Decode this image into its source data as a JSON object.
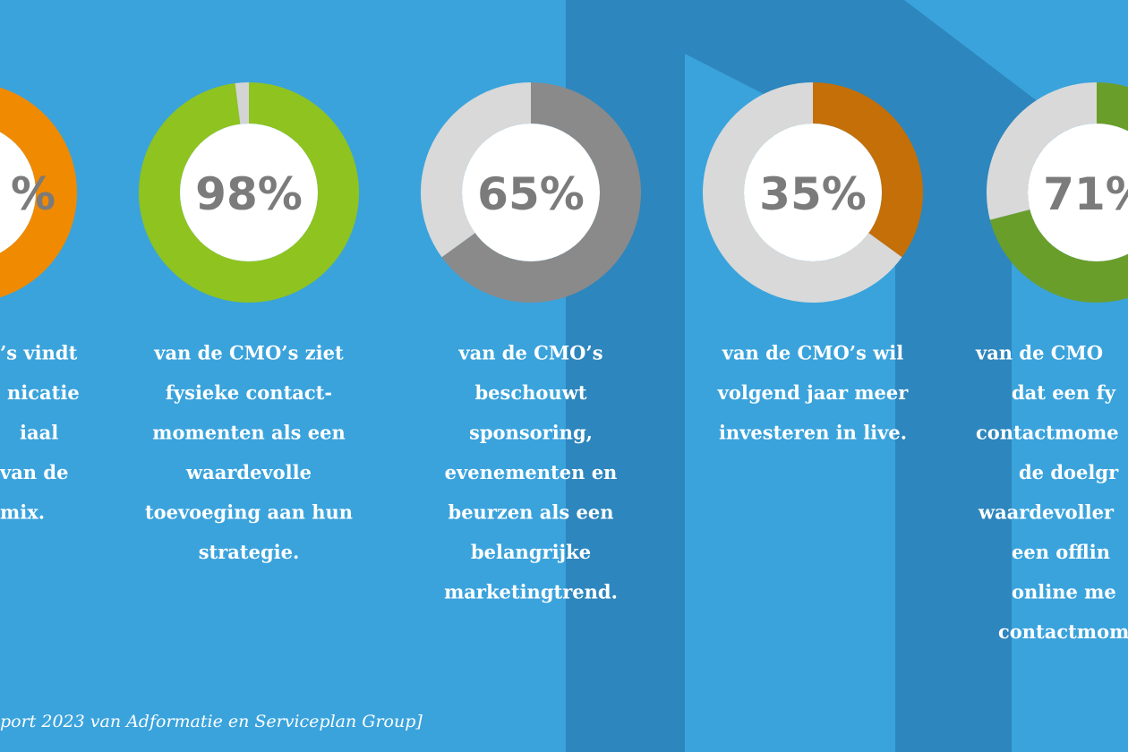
{
  "chart_data": [
    {
      "type": "pie",
      "values": [
        100
      ],
      "colors": [
        "#f08a00"
      ],
      "label": "%",
      "text": [
        "’s vindt",
        "nicatie",
        "iaal",
        "van de",
        "mix."
      ]
    },
    {
      "type": "pie",
      "values": [
        98,
        2
      ],
      "colors": [
        "#8fc31f",
        "#d4d4d4"
      ],
      "value_labels": [
        "98%",
        null
      ],
      "text": [
        "van de CMO’s ziet",
        "fysieke contact-",
        "momenten als een",
        "waardevolle",
        "toevoeging aan hun",
        "strategie."
      ]
    },
    {
      "type": "pie",
      "values": [
        65,
        35
      ],
      "colors": [
        "#8a8a8a",
        "#d9d9d9"
      ],
      "value_labels": [
        "65%",
        null
      ],
      "text": [
        "van de CMO’s",
        "beschouwt",
        "sponsoring,",
        "evenementen en",
        "beurzen als een",
        "belangrijke",
        "marketingtrend."
      ]
    },
    {
      "type": "pie",
      "values": [
        35,
        65
      ],
      "colors": [
        "#c46f08",
        "#d9d9d9"
      ],
      "value_labels": [
        "35%",
        null
      ],
      "text": [
        "van de CMO’s wil",
        "volgend jaar meer",
        "investeren in live."
      ]
    },
    {
      "type": "pie",
      "values": [
        71,
        29
      ],
      "colors": [
        "#6a9e2a",
        "#d9d9d9"
      ],
      "value_labels": [
        "71%",
        null
      ],
      "text": [
        "van de CMO",
        "dat een fy",
        "contactmome",
        "de doelgr",
        "waardevoller",
        "een offlin",
        "online me",
        "contactmom"
      ]
    }
  ],
  "source": "port 2023 van Adformatie en Serviceplan Group]"
}
